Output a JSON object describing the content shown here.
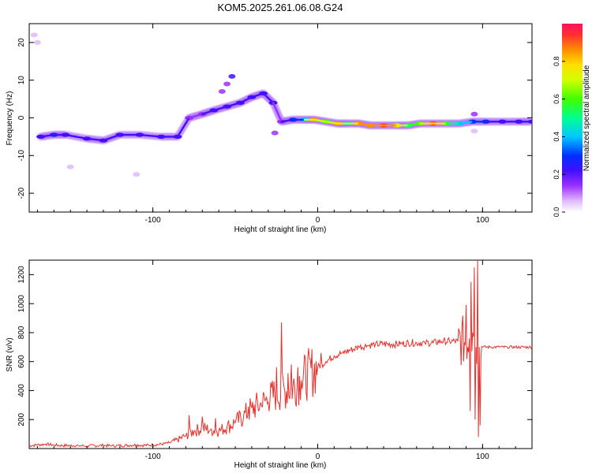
{
  "figure_title": "KOM5.2025.261.06.08.G24",
  "colors": {
    "snr_line": "#e8302c",
    "spectrum_cmap": [
      "#ffffff",
      "#e0b8ff",
      "#9a30ff",
      "#4010ff",
      "#0030ff",
      "#00c8ff",
      "#00ff90",
      "#40ff00",
      "#d0ff00",
      "#ffe000",
      "#ff9000",
      "#ff3030",
      "#ff1060"
    ]
  },
  "chart_data": [
    {
      "type": "heatmap",
      "title": "KOM5.2025.261.06.08.G24",
      "xlabel": "Height of straight line (km)",
      "ylabel": "Frequency (Hz)",
      "xlim": [
        -175,
        130
      ],
      "ylim": [
        -25,
        25
      ],
      "xticks": [
        -100,
        0,
        100
      ],
      "yticks": [
        -20,
        -10,
        0,
        10,
        20
      ],
      "colorbar": {
        "label": "Normalized spectral amplitude",
        "range": [
          0,
          1
        ],
        "ticks": [
          "0.0",
          "0.2",
          "0.4",
          "0.6",
          "0.8"
        ],
        "tick_values": [
          0,
          0.2,
          0.4,
          0.6,
          0.8
        ]
      },
      "main_trace": [
        {
          "x": -168,
          "f": -5,
          "amp": 0.28
        },
        {
          "x": -160,
          "f": -4.5,
          "amp": 0.3
        },
        {
          "x": -153,
          "f": -4.5,
          "amp": 0.28
        },
        {
          "x": -140,
          "f": -5.5,
          "amp": 0.25
        },
        {
          "x": -130,
          "f": -6,
          "amp": 0.22
        },
        {
          "x": -120,
          "f": -4.5,
          "amp": 0.25
        },
        {
          "x": -108,
          "f": -4.5,
          "amp": 0.25
        },
        {
          "x": -95,
          "f": -5,
          "amp": 0.22
        },
        {
          "x": -85,
          "f": -5,
          "amp": 0.25
        },
        {
          "x": -78,
          "f": 0,
          "amp": 0.2
        },
        {
          "x": -70,
          "f": 1,
          "amp": 0.2
        },
        {
          "x": -63,
          "f": 2,
          "amp": 0.22
        },
        {
          "x": -55,
          "f": 3,
          "amp": 0.22
        },
        {
          "x": -47,
          "f": 4,
          "amp": 0.22
        },
        {
          "x": -40,
          "f": 5.5,
          "amp": 0.25
        },
        {
          "x": -33,
          "f": 6.5,
          "amp": 0.25
        },
        {
          "x": -27,
          "f": 4,
          "amp": 0.25
        },
        {
          "x": -22,
          "f": -1,
          "amp": 0.15
        },
        {
          "x": -15,
          "f": -0.5,
          "amp": 0.3
        },
        {
          "x": -8,
          "f": -0.5,
          "amp": 0.4
        },
        {
          "x": -2,
          "f": -0.5,
          "amp": 0.85
        },
        {
          "x": 5,
          "f": -1,
          "amp": 0.55
        },
        {
          "x": 12,
          "f": -1.5,
          "amp": 0.8
        },
        {
          "x": 18,
          "f": -1.5,
          "amp": 0.45
        },
        {
          "x": 25,
          "f": -1.5,
          "amp": 0.85
        },
        {
          "x": 32,
          "f": -2,
          "amp": 0.8
        },
        {
          "x": 40,
          "f": -2,
          "amp": 0.9
        },
        {
          "x": 48,
          "f": -2,
          "amp": 0.75
        },
        {
          "x": 55,
          "f": -2,
          "amp": 0.5
        },
        {
          "x": 62,
          "f": -1.5,
          "amp": 0.6
        },
        {
          "x": 70,
          "f": -1.5,
          "amp": 0.9
        },
        {
          "x": 78,
          "f": -1.5,
          "amp": 0.55
        },
        {
          "x": 86,
          "f": -1.5,
          "amp": 0.4
        },
        {
          "x": 94,
          "f": -1,
          "amp": 0.35
        },
        {
          "x": 102,
          "f": -1,
          "amp": 0.3
        },
        {
          "x": 112,
          "f": -1,
          "amp": 0.25
        },
        {
          "x": 122,
          "f": -1,
          "amp": 0.22
        },
        {
          "x": 130,
          "f": -1,
          "amp": 0.22
        }
      ],
      "secondary_blobs": [
        {
          "x": -52,
          "f": 11,
          "amp": 0.22
        },
        {
          "x": -55,
          "f": 9,
          "amp": 0.2
        },
        {
          "x": -58,
          "f": 7,
          "amp": 0.18
        },
        {
          "x": -26,
          "f": -4,
          "amp": 0.15
        },
        {
          "x": -172,
          "f": 22,
          "amp": 0.1
        },
        {
          "x": -170,
          "f": 20,
          "amp": 0.08
        },
        {
          "x": -150,
          "f": -13,
          "amp": 0.1
        },
        {
          "x": -110,
          "f": -15,
          "amp": 0.1
        },
        {
          "x": 95,
          "f": 1,
          "amp": 0.15
        },
        {
          "x": 95,
          "f": -3.5,
          "amp": 0.12
        }
      ]
    },
    {
      "type": "line",
      "xlabel": "Height of straight line (km)",
      "ylabel": "SNR (v/v)",
      "xlim": [
        -175,
        130
      ],
      "ylim": [
        0,
        1300
      ],
      "xticks": [
        -100,
        0,
        100
      ],
      "yticks": [
        200,
        400,
        600,
        800,
        1000,
        1200
      ],
      "series": [
        {
          "name": "SNR",
          "x": [
            -175,
            -170,
            -165,
            -160,
            -155,
            -150,
            -145,
            -140,
            -135,
            -130,
            -125,
            -120,
            -115,
            -110,
            -105,
            -100,
            -95,
            -90,
            -85,
            -80,
            -75,
            -70,
            -65,
            -60,
            -55,
            -50,
            -45,
            -40,
            -35,
            -30,
            -25,
            -20,
            -15,
            -10,
            -5,
            0,
            5,
            10,
            15,
            20,
            25,
            30,
            35,
            40,
            45,
            50,
            55,
            60,
            65,
            70,
            75,
            80,
            85,
            90,
            92,
            94,
            96,
            98,
            100,
            105,
            110,
            115,
            120,
            125,
            130
          ],
          "values": [
            20,
            25,
            30,
            25,
            20,
            22,
            20,
            18,
            20,
            22,
            18,
            20,
            22,
            25,
            22,
            25,
            30,
            40,
            60,
            90,
            120,
            140,
            130,
            120,
            150,
            180,
            220,
            280,
            300,
            340,
            380,
            400,
            430,
            470,
            520,
            560,
            600,
            640,
            660,
            680,
            700,
            710,
            720,
            720,
            720,
            720,
            730,
            730,
            730,
            730,
            740,
            740,
            740,
            740,
            760,
            800,
            700,
            700,
            700,
            700,
            700,
            700,
            700,
            700,
            700
          ],
          "spikes": [
            {
              "x": -78,
              "v": 230
            },
            {
              "x": -70,
              "v": 220
            },
            {
              "x": -62,
              "v": 210
            },
            {
              "x": -42,
              "v": 290
            },
            {
              "x": -40,
              "v": 280
            },
            {
              "x": -34,
              "v": 290
            },
            {
              "x": -30,
              "v": 320
            },
            {
              "x": -25,
              "v": 560
            },
            {
              "x": -22,
              "v": 870
            },
            {
              "x": -18,
              "v": 520
            },
            {
              "x": -16,
              "v": 580
            },
            {
              "x": -12,
              "v": 560
            },
            {
              "x": -5,
              "v": 620
            },
            {
              "x": 2,
              "v": 660
            },
            {
              "x": 90,
              "v": 990
            },
            {
              "x": 93,
              "v": 1150
            },
            {
              "x": 95,
              "v": 1250
            },
            {
              "x": 97,
              "v": 1300
            }
          ],
          "dips": [
            {
              "x": 92,
              "v": 260
            },
            {
              "x": 95,
              "v": 200
            },
            {
              "x": 97,
              "v": 80
            },
            {
              "x": 98,
              "v": 160
            }
          ]
        }
      ]
    }
  ]
}
